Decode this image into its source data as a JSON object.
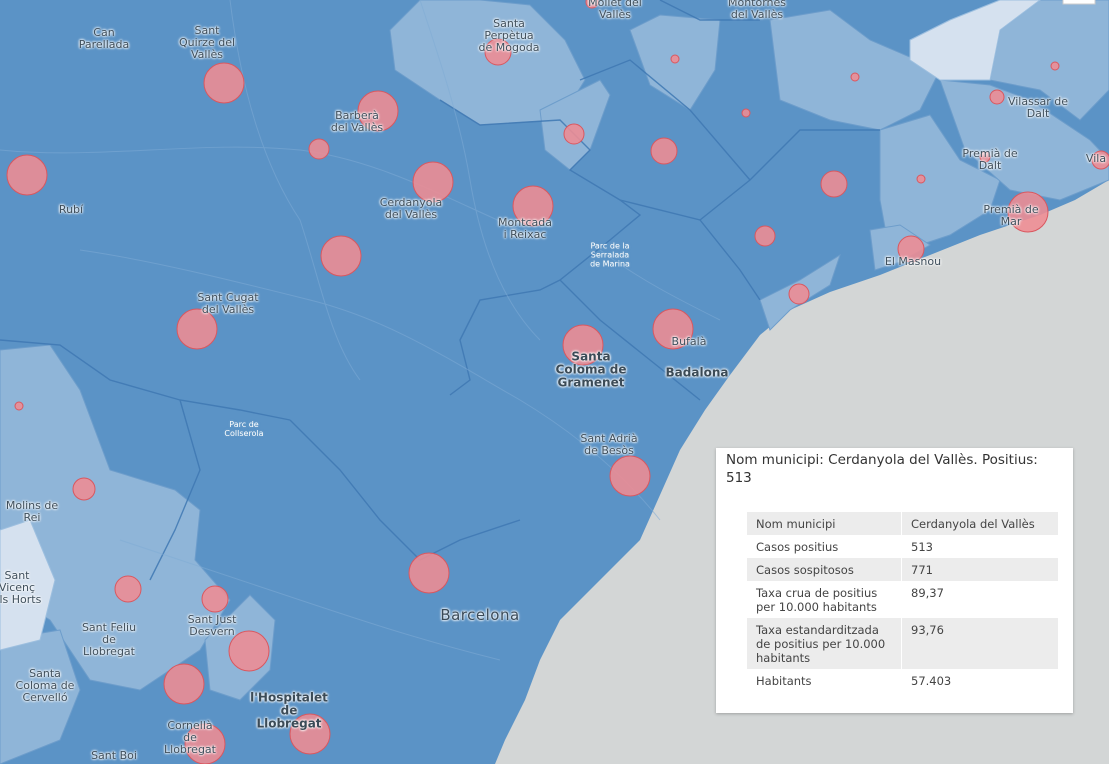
{
  "map": {
    "background_sea": "#d3d6d6",
    "choropleth_dark": "#5b93c6",
    "choropleth_mid": "#8fb5d8",
    "choropleth_light": "#b9d0e7",
    "choropleth_lightest": "#d5e1ef",
    "bubble_color": "#ef8c93",
    "bubble_stroke": "#d9575f",
    "labels": [
      {
        "name": "place-can-parellada",
        "text": "Can\nParellada",
        "kind": "town"
      },
      {
        "name": "place-sant-quirze",
        "text": "Sant\nQuirze del\nVallès",
        "kind": "town"
      },
      {
        "name": "place-santa-perpetua",
        "text": "Santa\nPerpètua\nde Mogoda",
        "kind": "town"
      },
      {
        "name": "place-mollet",
        "text": "Mollet del\nVallès",
        "kind": "town"
      },
      {
        "name": "place-montornes",
        "text": "Montornès\ndel Vallès",
        "kind": "town"
      },
      {
        "name": "place-barbera",
        "text": "Barberà\ndel Vallès",
        "kind": "town"
      },
      {
        "name": "place-rubi",
        "text": "Rubí",
        "kind": "town"
      },
      {
        "name": "place-cerdanyola",
        "text": "Cerdanyola\ndel Vallès",
        "kind": "town"
      },
      {
        "name": "place-montcada",
        "text": "Montcada\ni Reixac",
        "kind": "town"
      },
      {
        "name": "place-vilassar",
        "text": "Vilassar de\nDalt",
        "kind": "town"
      },
      {
        "name": "place-premia-dalt",
        "text": "Premià de\nDalt",
        "kind": "town"
      },
      {
        "name": "place-premia-mar",
        "text": "Premià de\nMar",
        "kind": "town"
      },
      {
        "name": "place-el-masnou",
        "text": "El Masnou",
        "kind": "town"
      },
      {
        "name": "place-vila",
        "text": "Vila",
        "kind": "town"
      },
      {
        "name": "park-serralada",
        "text": "Parc de la\nSerralada\nde Marina",
        "kind": "park"
      },
      {
        "name": "park-collserola",
        "text": "Parc de\nCollserola",
        "kind": "park"
      },
      {
        "name": "place-sant-cugat",
        "text": "Sant Cugat\ndel Vallès",
        "kind": "town"
      },
      {
        "name": "place-bufala",
        "text": "Bufalà",
        "kind": "town"
      },
      {
        "name": "place-santa-coloma-gramenet",
        "text": "Santa\nColoma de\nGramenet",
        "kind": "big"
      },
      {
        "name": "place-badalona",
        "text": "Badalona",
        "kind": "big"
      },
      {
        "name": "place-sant-adria",
        "text": "Sant Adrià\nde Besòs",
        "kind": "town"
      },
      {
        "name": "place-molins",
        "text": "Molins de\nRei",
        "kind": "town"
      },
      {
        "name": "place-sant-vicenc",
        "text": "Sant\nVicenç\nels Horts",
        "kind": "town"
      },
      {
        "name": "place-sant-feliu",
        "text": "Sant Feliu\nde\nLlobregat",
        "kind": "town"
      },
      {
        "name": "place-sant-just",
        "text": "Sant Just\nDesvern",
        "kind": "town"
      },
      {
        "name": "place-barcelona",
        "text": "Barcelona",
        "kind": "city"
      },
      {
        "name": "place-santa-coloma-cervello",
        "text": "Santa\nColoma de\nCervelló",
        "kind": "town"
      },
      {
        "name": "place-hospitalet",
        "text": "l'Hospitalet\nde\nLlobregat",
        "kind": "big"
      },
      {
        "name": "place-cornella",
        "text": "Cornellà\nde\nLlobregat",
        "kind": "town"
      },
      {
        "name": "place-sant-boi",
        "text": "Sant Boi",
        "kind": "town"
      }
    ]
  },
  "popup": {
    "title": "Nom municipi: Cerdanyola del Vallès. Positius: 513",
    "rows": [
      {
        "key": "Nom municipi",
        "value": "Cerdanyola del Vallès"
      },
      {
        "key": "Casos positius",
        "value": "513"
      },
      {
        "key": "Casos sospitosos",
        "value": "771"
      },
      {
        "key": "Taxa crua de positius per 10.000 habitants",
        "value": "89,37"
      },
      {
        "key": "Taxa estandarditzada de positius per 10.000 habitants",
        "value": "93,76"
      },
      {
        "key": "Habitants",
        "value": "57.403"
      }
    ]
  }
}
